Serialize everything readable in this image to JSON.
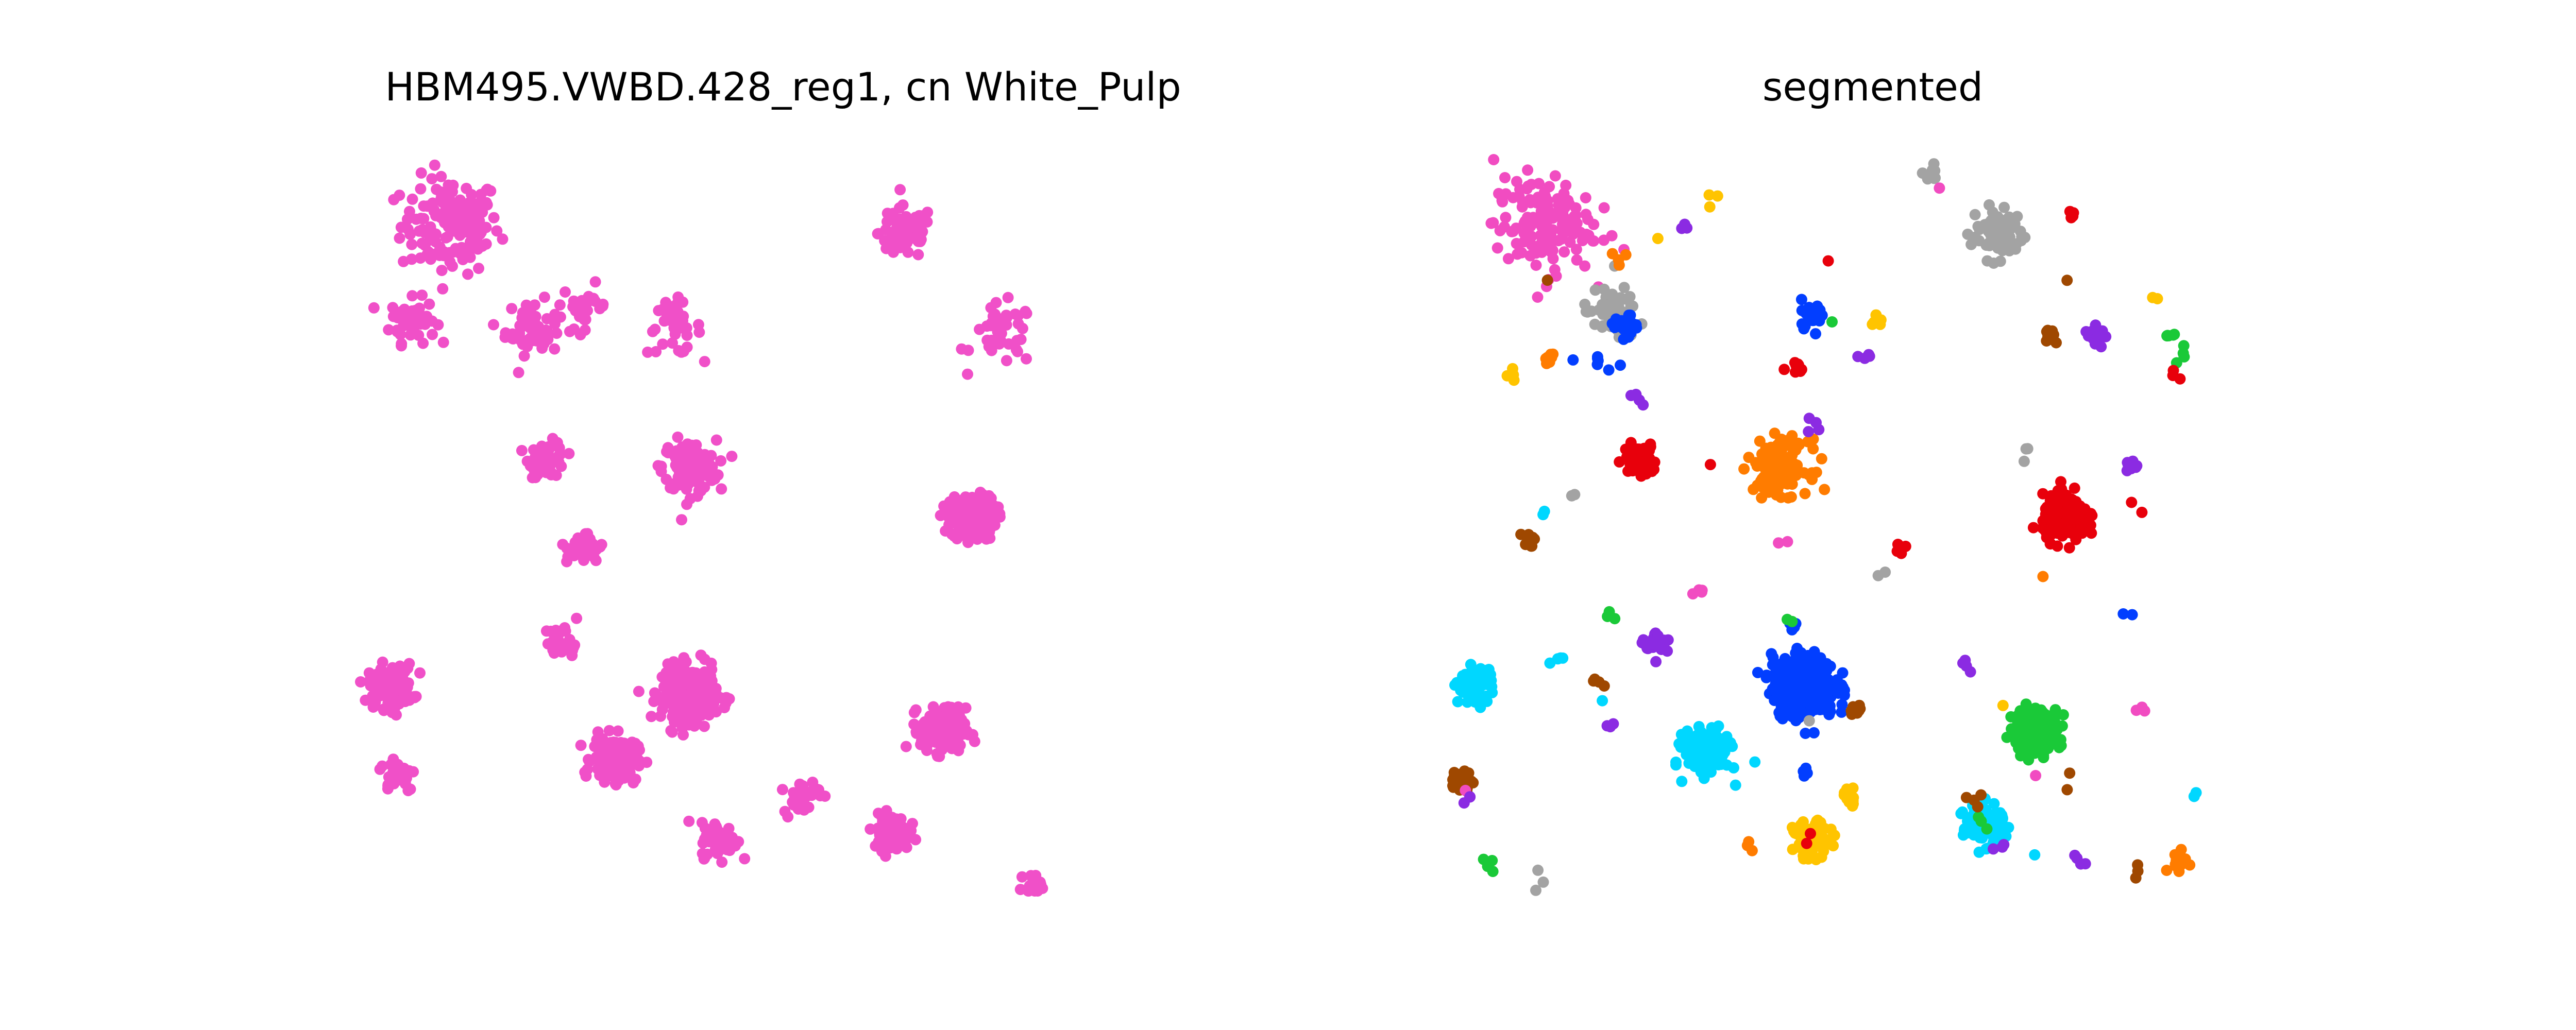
{
  "figure": {
    "background": "#ffffff"
  },
  "chart_data": [
    {
      "type": "scatter",
      "title": "HBM495.VWBD.428_reg1, cn White_Pulp",
      "axes_visible": false,
      "grid": false,
      "legend": "none",
      "xlim": [
        0,
        1
      ],
      "ylim": [
        0,
        1
      ],
      "point_color": "#f050c8",
      "series": [
        {
          "color": "#f050c8",
          "clusters": [
            {
              "x": 0.12,
              "y": 0.91,
              "spread": 0.055,
              "count": 150
            },
            {
              "x": 0.07,
              "y": 0.78,
              "spread": 0.025,
              "count": 55
            },
            {
              "x": 0.23,
              "y": 0.77,
              "spread": 0.03,
              "count": 60
            },
            {
              "x": 0.3,
              "y": 0.8,
              "spread": 0.025,
              "count": 25
            },
            {
              "x": 0.42,
              "y": 0.77,
              "spread": 0.03,
              "count": 40
            },
            {
              "x": 0.73,
              "y": 0.9,
              "spread": 0.03,
              "count": 80
            },
            {
              "x": 0.86,
              "y": 0.76,
              "spread": 0.035,
              "count": 40
            },
            {
              "x": 0.25,
              "y": 0.59,
              "spread": 0.02,
              "count": 60
            },
            {
              "x": 0.44,
              "y": 0.58,
              "spread": 0.03,
              "count": 150
            },
            {
              "x": 0.82,
              "y": 0.51,
              "spread": 0.025,
              "count": 220
            },
            {
              "x": 0.04,
              "y": 0.28,
              "spread": 0.025,
              "count": 120
            },
            {
              "x": 0.44,
              "y": 0.27,
              "spread": 0.03,
              "count": 330
            },
            {
              "x": 0.34,
              "y": 0.18,
              "spread": 0.025,
              "count": 180
            },
            {
              "x": 0.78,
              "y": 0.22,
              "spread": 0.025,
              "count": 200
            },
            {
              "x": 0.05,
              "y": 0.16,
              "spread": 0.02,
              "count": 40
            },
            {
              "x": 0.48,
              "y": 0.07,
              "spread": 0.02,
              "count": 60
            },
            {
              "x": 0.71,
              "y": 0.08,
              "spread": 0.02,
              "count": 120
            },
            {
              "x": 0.59,
              "y": 0.13,
              "spread": 0.02,
              "count": 35
            },
            {
              "x": 0.9,
              "y": 0.01,
              "spread": 0.01,
              "count": 25
            },
            {
              "x": 0.27,
              "y": 0.34,
              "spread": 0.02,
              "count": 30
            },
            {
              "x": 0.3,
              "y": 0.47,
              "spread": 0.02,
              "count": 30
            }
          ],
          "scatter_points": 260
        }
      ]
    },
    {
      "type": "scatter",
      "title": "segmented",
      "axes_visible": false,
      "grid": false,
      "legend": "none",
      "xlim": [
        0,
        1
      ],
      "ylim": [
        0,
        1
      ],
      "palette": [
        "#e8000b",
        "#023eff",
        "#1ac938",
        "#8b2be2",
        "#ff7c00",
        "#00d7ff",
        "#ffc400",
        "#a3a3a3",
        "#9f4800",
        "#f14cc1"
      ],
      "series": [
        {
          "color": "#f14cc1",
          "clusters": [
            {
              "x": 0.12,
              "y": 0.91,
              "spread": 0.055,
              "count": 150
            }
          ]
        },
        {
          "color": "#a3a3a3",
          "clusters": [
            {
              "x": 0.73,
              "y": 0.9,
              "spread": 0.03,
              "count": 80
            },
            {
              "x": 0.21,
              "y": 0.79,
              "spread": 0.03,
              "count": 45
            },
            {
              "x": 0.64,
              "y": 0.98,
              "spread": 0.01,
              "count": 8
            }
          ]
        },
        {
          "color": "#023eff",
          "clusters": [
            {
              "x": 0.47,
              "y": 0.28,
              "spread": 0.035,
              "count": 330
            },
            {
              "x": 0.48,
              "y": 0.79,
              "spread": 0.015,
              "count": 25
            },
            {
              "x": 0.23,
              "y": 0.77,
              "spread": 0.015,
              "count": 20
            }
          ]
        },
        {
          "color": "#e8000b",
          "clusters": [
            {
              "x": 0.82,
              "y": 0.51,
              "spread": 0.025,
              "count": 220
            },
            {
              "x": 0.25,
              "y": 0.59,
              "spread": 0.018,
              "count": 60
            },
            {
              "x": 0.46,
              "y": 0.72,
              "spread": 0.01,
              "count": 8
            }
          ]
        },
        {
          "color": "#ff7c00",
          "clusters": [
            {
              "x": 0.44,
              "y": 0.58,
              "spread": 0.03,
              "count": 150
            },
            {
              "x": 0.97,
              "y": 0.04,
              "spread": 0.01,
              "count": 20
            },
            {
              "x": 0.13,
              "y": 0.73,
              "spread": 0.01,
              "count": 8
            }
          ]
        },
        {
          "color": "#00d7ff",
          "clusters": [
            {
              "x": 0.34,
              "y": 0.19,
              "spread": 0.025,
              "count": 180
            },
            {
              "x": 0.71,
              "y": 0.09,
              "spread": 0.022,
              "count": 130
            },
            {
              "x": 0.03,
              "y": 0.28,
              "spread": 0.02,
              "count": 70
            }
          ]
        },
        {
          "color": "#ffc400",
          "clusters": [
            {
              "x": 0.48,
              "y": 0.07,
              "spread": 0.02,
              "count": 70
            },
            {
              "x": 0.53,
              "y": 0.13,
              "spread": 0.01,
              "count": 20
            },
            {
              "x": 0.57,
              "y": 0.78,
              "spread": 0.008,
              "count": 6
            }
          ]
        },
        {
          "color": "#1ac938",
          "clusters": [
            {
              "x": 0.78,
              "y": 0.22,
              "spread": 0.025,
              "count": 200
            },
            {
              "x": 0.96,
              "y": 0.76,
              "spread": 0.006,
              "count": 5
            }
          ]
        },
        {
          "color": "#8b2be2",
          "clusters": [
            {
              "x": 0.27,
              "y": 0.34,
              "spread": 0.015,
              "count": 30
            },
            {
              "x": 0.86,
              "y": 0.76,
              "spread": 0.012,
              "count": 15
            },
            {
              "x": 0.91,
              "y": 0.58,
              "spread": 0.008,
              "count": 10
            }
          ]
        },
        {
          "color": "#9f4800",
          "clusters": [
            {
              "x": 0.01,
              "y": 0.15,
              "spread": 0.012,
              "count": 40
            },
            {
              "x": 0.54,
              "y": 0.25,
              "spread": 0.008,
              "count": 12
            },
            {
              "x": 0.8,
              "y": 0.76,
              "spread": 0.008,
              "count": 12
            },
            {
              "x": 0.1,
              "y": 0.48,
              "spread": 0.008,
              "count": 10
            }
          ]
        }
      ],
      "scatter_points": 60
    }
  ]
}
